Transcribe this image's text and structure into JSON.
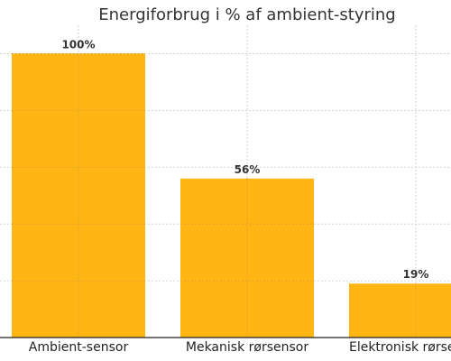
{
  "chart_data": {
    "type": "bar",
    "title": "Energiforbrug i % af ambient-styring",
    "xlabel": "",
    "ylabel": "",
    "categories": [
      "Ambient-sensor",
      "Mekanisk rørsensor",
      "Elektronisk rørsensor"
    ],
    "values": [
      100,
      56,
      19
    ],
    "value_labels": [
      "100%",
      "56%",
      "19%"
    ],
    "ylim": [
      0,
      110
    ],
    "grid": true,
    "bar_color": "#FFB000",
    "grid_color": "#C8C8C8"
  }
}
